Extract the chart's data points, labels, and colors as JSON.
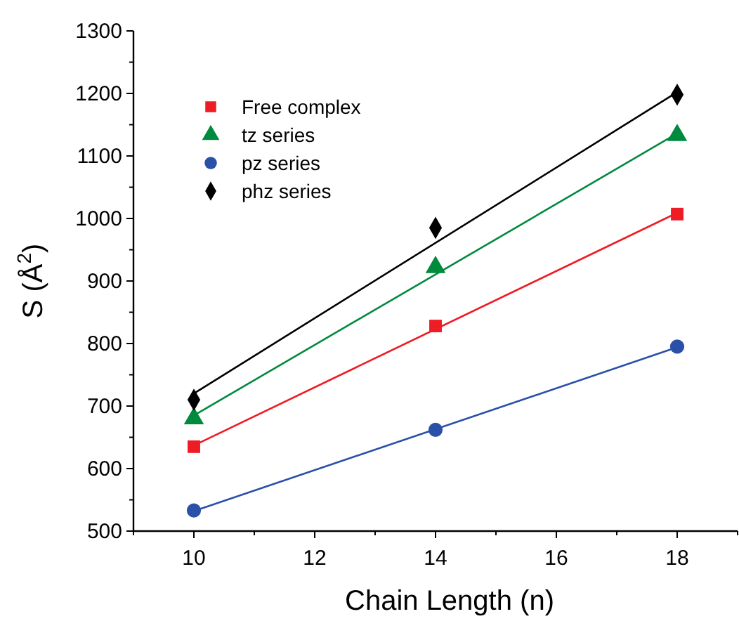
{
  "chart_data": {
    "type": "scatter",
    "xlabel": "Chain Length (n)",
    "ylabel": "S (Å$^{2}$)",
    "xlim": [
      9,
      19
    ],
    "ylim": [
      500,
      1300
    ],
    "xticks": [
      {
        "value": 9,
        "label": null
      },
      10,
      {
        "value": 11,
        "label": null
      },
      12,
      {
        "value": 13,
        "label": null
      },
      14,
      {
        "value": 15,
        "label": null
      },
      16,
      {
        "value": 17,
        "label": null
      },
      18,
      {
        "value": 19,
        "label": null
      }
    ],
    "yticks": [
      500,
      {
        "value": 550,
        "label": null
      },
      600,
      {
        "value": 650,
        "label": null
      },
      700,
      {
        "value": 750,
        "label": null
      },
      800,
      {
        "value": 850,
        "label": null
      },
      900,
      {
        "value": 950,
        "label": null
      },
      1000,
      {
        "value": 1050,
        "label": null
      },
      1100,
      {
        "value": 1150,
        "label": null
      },
      1200,
      {
        "value": 1250,
        "label": null
      },
      1300
    ],
    "legend": "top left",
    "grid": false,
    "series": [
      {
        "name": "Free complex",
        "color": "#ee1c25",
        "marker": "square",
        "x": [
          10,
          14,
          18
        ],
        "values": [
          635,
          828,
          1007
        ]
      },
      {
        "name": "tz series",
        "color": "#008a3e",
        "marker": "triangle",
        "x": [
          10,
          14,
          18
        ],
        "values": [
          680,
          922,
          1133
        ]
      },
      {
        "name": "pz series",
        "color": "#2b50a8",
        "marker": "circle",
        "x": [
          10,
          14,
          18
        ],
        "values": [
          533,
          662,
          795
        ]
      },
      {
        "name": "phz series",
        "color": "#000000",
        "marker": "diamond",
        "x": [
          10,
          14,
          18
        ],
        "values": [
          710,
          985,
          1198
        ]
      },
      {
        "type": "line",
        "color": "#ee1c25",
        "x": [
          10,
          18
        ],
        "values": [
          637,
          1009
        ]
      },
      {
        "type": "line",
        "color": "#008a3e",
        "x": [
          10,
          18
        ],
        "values": [
          685,
          1136
        ]
      },
      {
        "type": "line",
        "color": "#2b50a8",
        "x": [
          10,
          18
        ],
        "values": [
          532,
          794
        ]
      },
      {
        "type": "line",
        "color": "#000000",
        "x": [
          10,
          18
        ],
        "values": [
          720,
          1202
        ]
      }
    ]
  }
}
